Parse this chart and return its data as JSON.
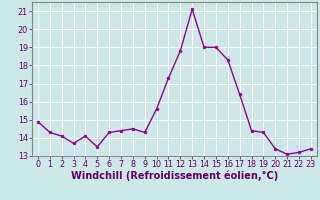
{
  "x": [
    0,
    1,
    2,
    3,
    4,
    5,
    6,
    7,
    8,
    9,
    10,
    11,
    12,
    13,
    14,
    15,
    16,
    17,
    18,
    19,
    20,
    21,
    22,
    23
  ],
  "y": [
    14.9,
    14.3,
    14.1,
    13.7,
    14.1,
    13.5,
    14.3,
    14.4,
    14.5,
    14.3,
    15.6,
    17.3,
    18.8,
    21.1,
    19.0,
    19.0,
    18.3,
    16.4,
    14.4,
    14.3,
    13.4,
    13.1,
    13.2,
    13.4
  ],
  "line_color": "#990099",
  "marker": "o",
  "marker_size": 2.0,
  "linewidth": 1.0,
  "bg_color": "#cce8e8",
  "grid_color": "#ffffff",
  "xlabel": "Windchill (Refroidissement éolien,°C)",
  "ylabel": "",
  "xlim": [
    -0.5,
    23.5
  ],
  "ylim": [
    13,
    21.5
  ],
  "yticks": [
    13,
    14,
    15,
    16,
    17,
    18,
    19,
    20,
    21
  ],
  "xticks": [
    0,
    1,
    2,
    3,
    4,
    5,
    6,
    7,
    8,
    9,
    10,
    11,
    12,
    13,
    14,
    15,
    16,
    17,
    18,
    19,
    20,
    21,
    22,
    23
  ],
  "tick_fontsize": 5.8,
  "xlabel_fontsize": 7.0,
  "tick_color": "#660066",
  "axis_color": "#660066",
  "spine_color": "#888888"
}
